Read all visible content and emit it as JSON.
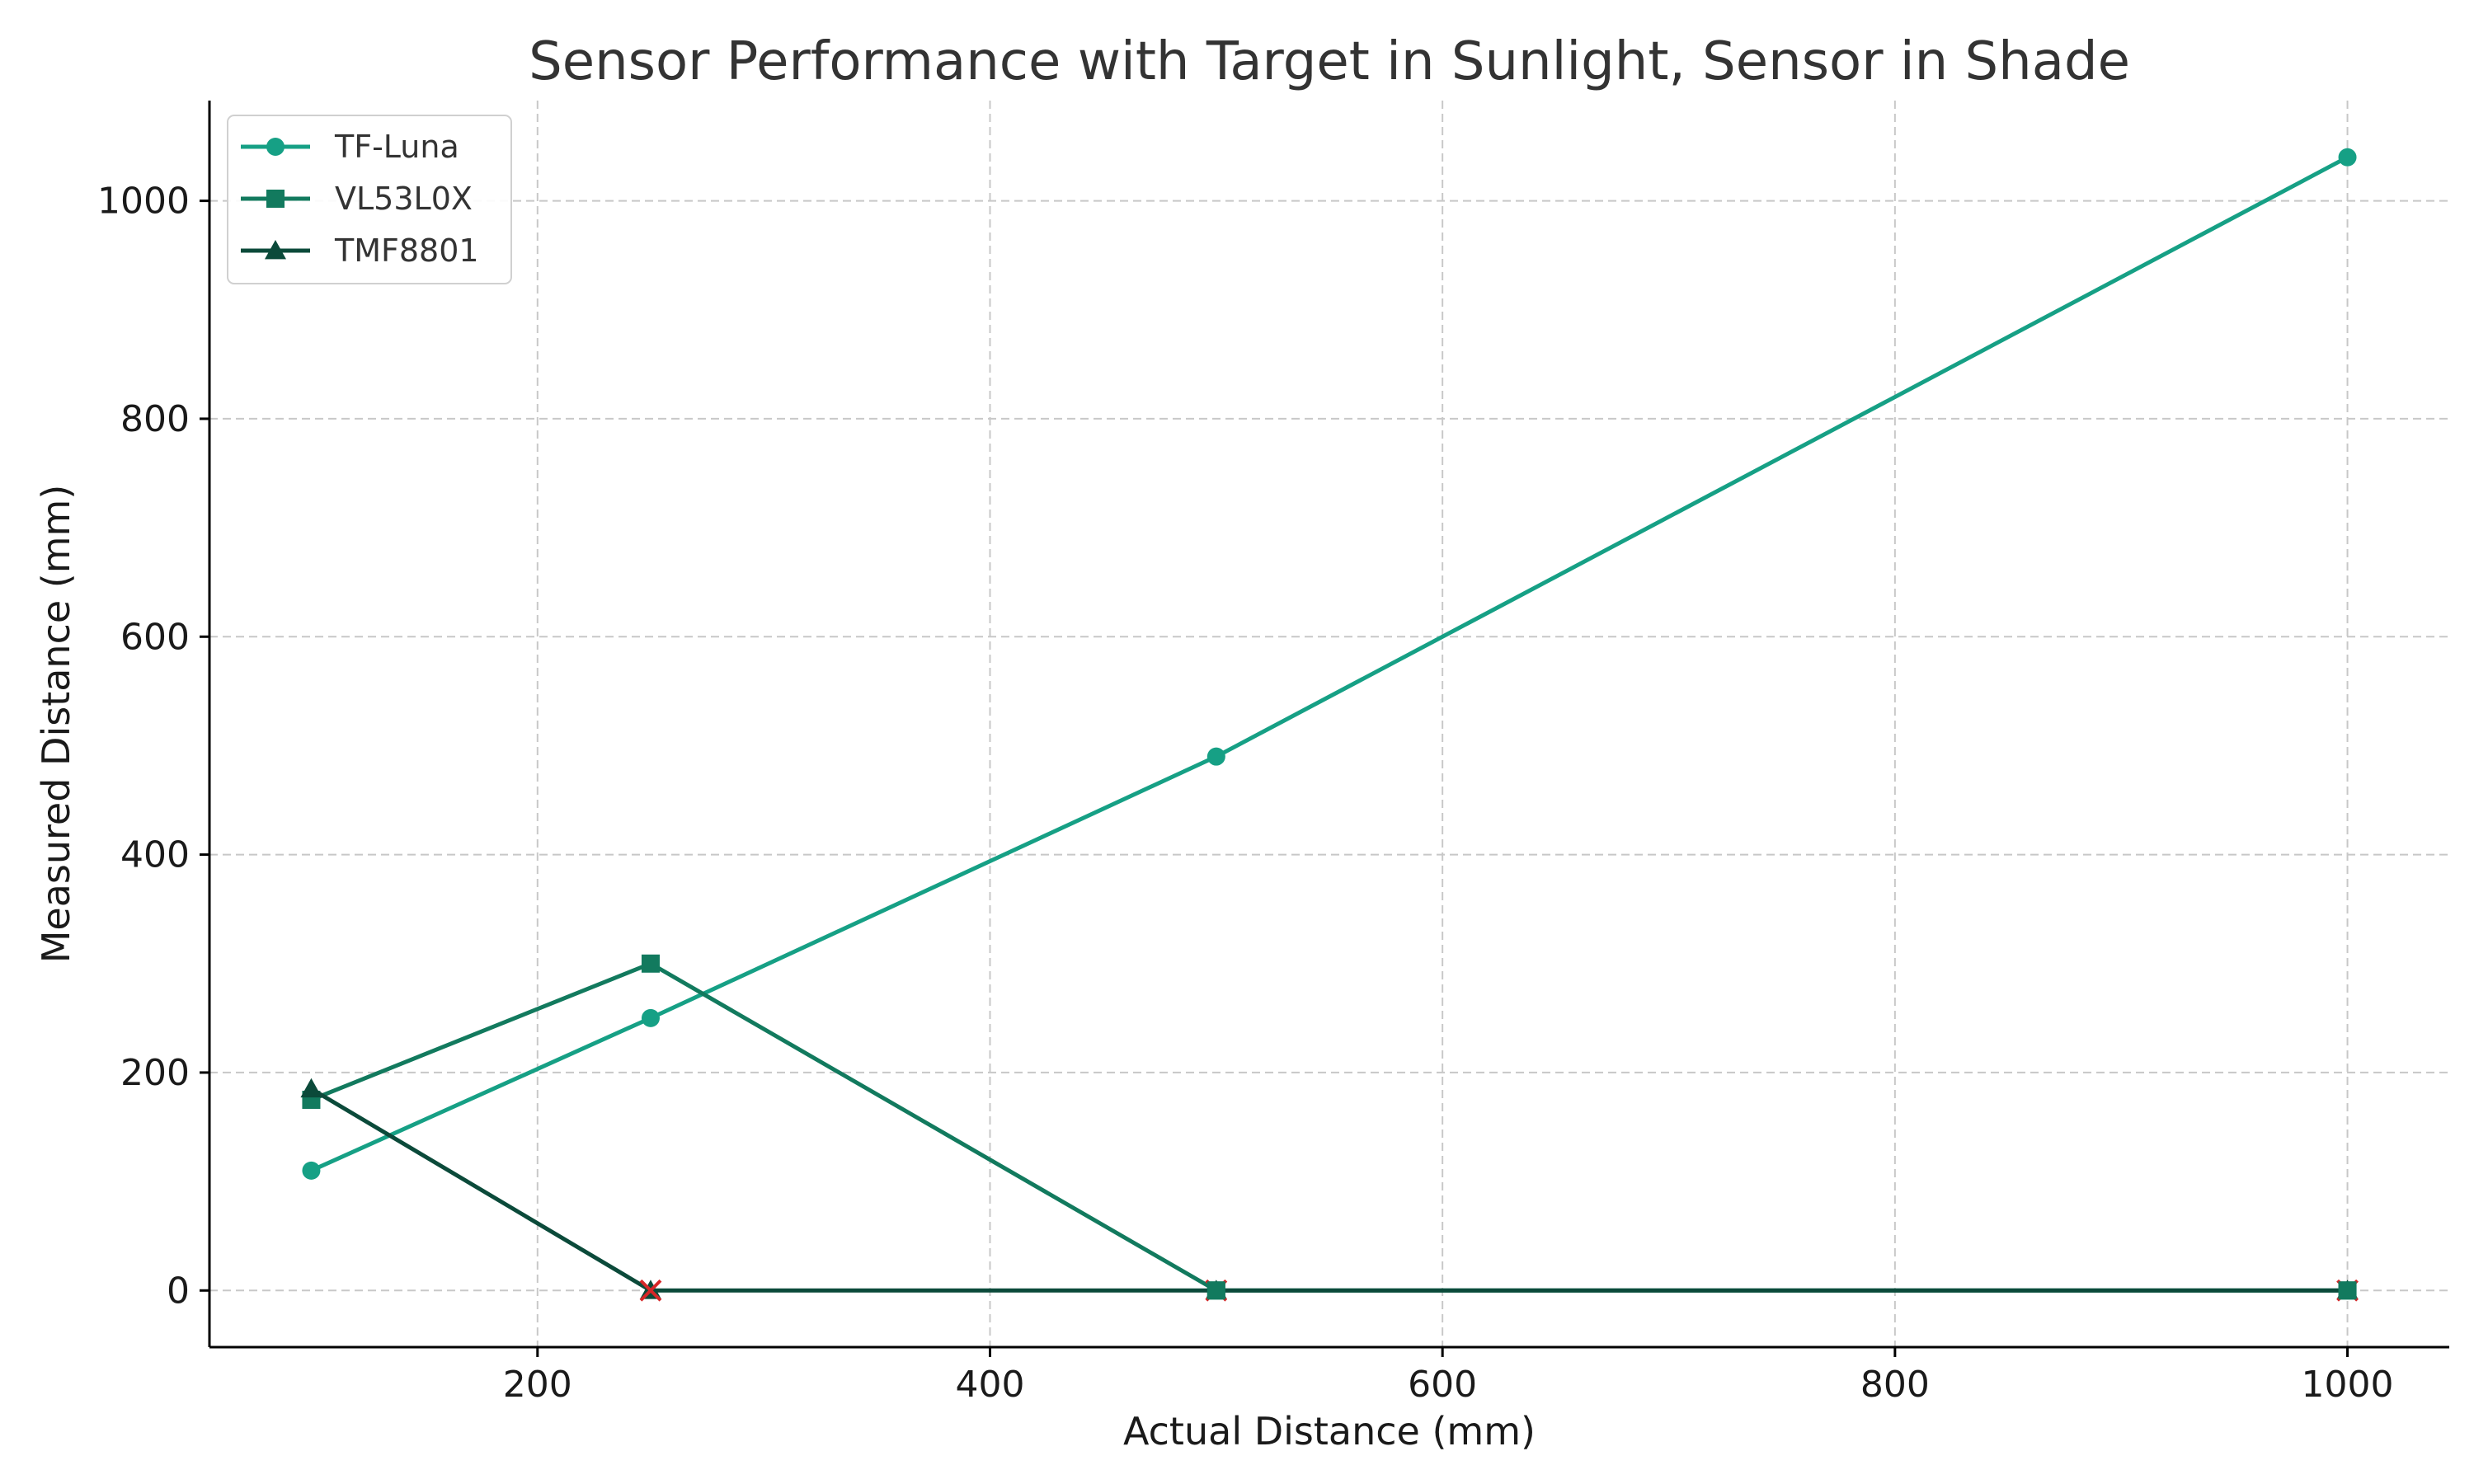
{
  "chart_data": {
    "type": "line",
    "title": "Sensor Performance with Target in Sunlight, Sensor in Shade",
    "xlabel": "Actual Distance (mm)",
    "ylabel": "Measured Distance (mm)",
    "xlim": [
      55,
      1045
    ],
    "ylim": [
      -52,
      1092
    ],
    "xticks": [
      200,
      400,
      600,
      800,
      1000
    ],
    "yticks": [
      0,
      200,
      400,
      600,
      800,
      1000
    ],
    "grid": true,
    "legend_position": "top-left",
    "series": [
      {
        "name": "TF-Luna",
        "marker": "circle",
        "color": "#16a085",
        "x": [
          100,
          250,
          500,
          1000
        ],
        "y": [
          110,
          250,
          490,
          1040
        ]
      },
      {
        "name": "VL53L0X",
        "marker": "square",
        "color": "#127a5e",
        "x": [
          100,
          250,
          500,
          1000
        ],
        "y": [
          175,
          300,
          0,
          0
        ]
      },
      {
        "name": "TMF8801",
        "marker": "triangle",
        "color": "#0b4a3a",
        "x": [
          100,
          250,
          500,
          1000
        ],
        "y": [
          185,
          0,
          0,
          0
        ]
      }
    ],
    "failure_markers": {
      "marker": "x",
      "color": "#d62728",
      "points": [
        [
          250,
          0
        ],
        [
          500,
          0
        ],
        [
          1000,
          0
        ]
      ]
    }
  }
}
